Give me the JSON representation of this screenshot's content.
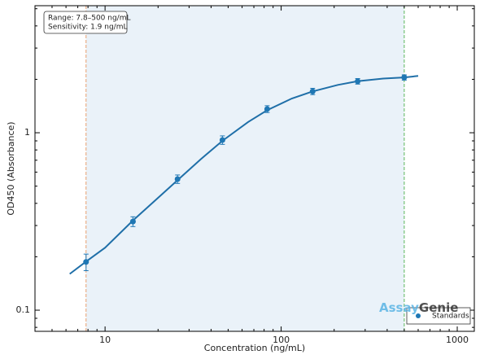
{
  "chart_data": {
    "type": "scatter",
    "xlabel": "Concentration (ng/mL)",
    "ylabel": "OD450 (Absorbance)",
    "xlog": true,
    "ylog": true,
    "xlim": [
      4,
      1250
    ],
    "ylim": [
      0.076,
      5.2
    ],
    "xticks": [
      10,
      100,
      1000
    ],
    "yticks": [
      0.1,
      1
    ],
    "xminor_ticks": [
      4,
      5,
      6,
      7,
      8,
      9,
      20,
      30,
      40,
      50,
      60,
      70,
      80,
      90,
      200,
      300,
      400,
      500,
      600,
      700,
      800,
      900
    ],
    "yminor_ticks": [
      0.08,
      0.09,
      0.2,
      0.3,
      0.4,
      0.5,
      0.6,
      0.7,
      0.8,
      0.9,
      2,
      3,
      4,
      5
    ],
    "series": [
      {
        "name": "Standards",
        "color": "#1f77b4",
        "x": [
          7.8,
          14.4,
          25.8,
          46.4,
          83.3,
          151,
          272,
          500
        ],
        "values": [
          0.187,
          0.316,
          0.548,
          0.91,
          1.36,
          1.71,
          1.95,
          2.05
        ],
        "errors": [
          0.02,
          0.02,
          0.03,
          0.05,
          0.06,
          0.07,
          0.07,
          0.07
        ]
      }
    ],
    "curve": {
      "color": "#1f6fa8",
      "x": [
        6.3,
        7.8,
        10,
        14.4,
        20,
        25.8,
        35,
        46.4,
        65,
        83.3,
        115,
        151,
        210,
        272,
        380,
        500,
        600
      ],
      "values": [
        0.16,
        0.188,
        0.225,
        0.32,
        0.43,
        0.54,
        0.71,
        0.9,
        1.15,
        1.34,
        1.56,
        1.71,
        1.86,
        1.95,
        2.02,
        2.05,
        2.09
      ]
    },
    "range_lines": [
      {
        "value": 7.8,
        "color": "#e8a070"
      },
      {
        "value": 500,
        "color": "#5cb85c"
      }
    ],
    "range_fill": "#dce9f5",
    "annotation": [
      "Range: 7.8–500 ng/mL",
      "Sensitivity: 1.9 ng/mL"
    ],
    "legend": "lower right",
    "logo": [
      "Assay",
      "Genie"
    ]
  }
}
